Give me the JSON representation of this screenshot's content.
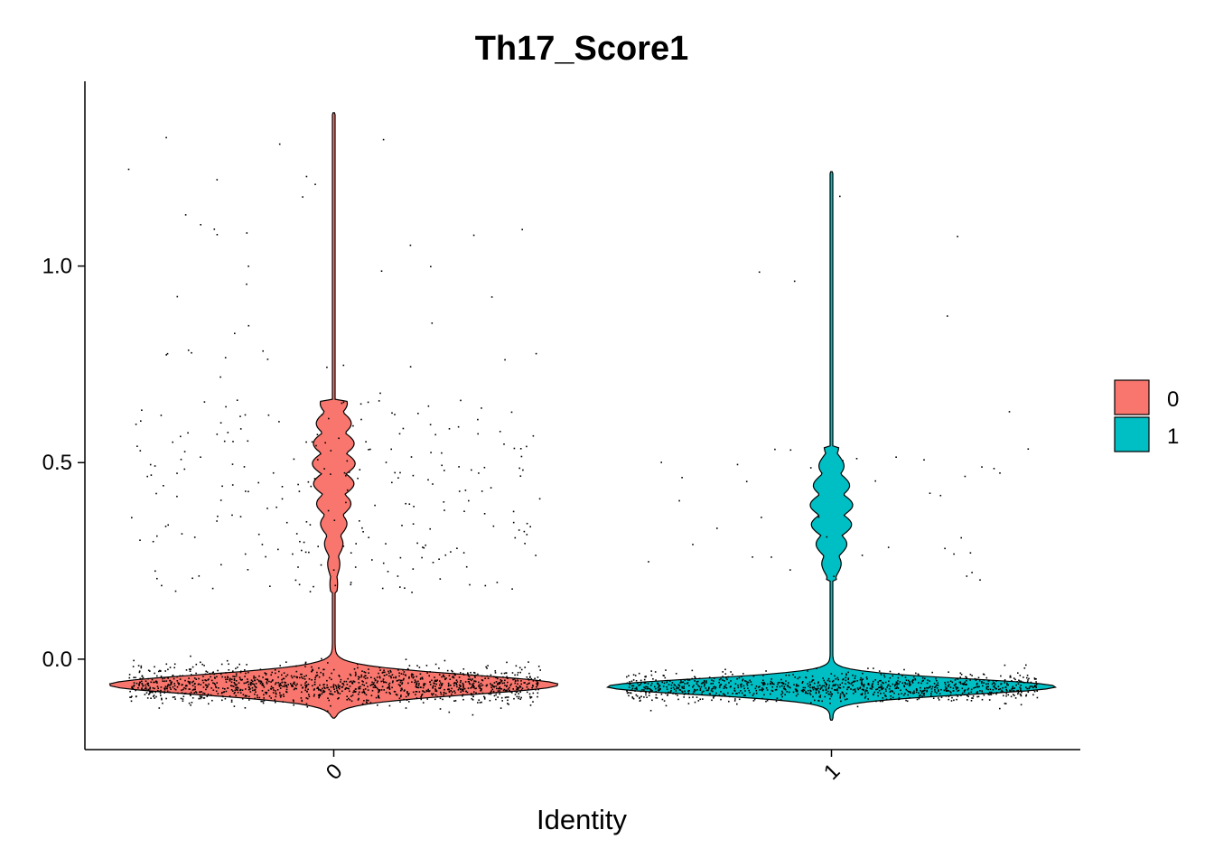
{
  "chart_data": {
    "type": "violin",
    "title": "Th17_Score1",
    "xlabel": "Identity",
    "ylabel": "",
    "ylim": [
      -0.23,
      1.47
    ],
    "y_ticks": [
      0.0,
      0.5,
      1.0
    ],
    "y_tick_labels": [
      "0.0",
      "0.5",
      "1.0"
    ],
    "categories": [
      "0",
      "1"
    ],
    "x_tick_rotation_deg": -45,
    "show_points": true,
    "grid": false,
    "legend": {
      "position": "right",
      "entries": [
        "0",
        "1"
      ]
    },
    "series": [
      {
        "category": "0",
        "color": "#F8766D",
        "max": 1.39,
        "min": -0.15,
        "bulk_center": -0.065,
        "bulk_spread": 0.025,
        "secondary_mode_range": [
          0.17,
          0.66
        ],
        "secondary_mode_center": 0.5,
        "n_points": 1350,
        "n_outliers": 280
      },
      {
        "category": "1",
        "color": "#00BFC4",
        "max": 1.24,
        "min": -0.155,
        "bulk_center": -0.07,
        "bulk_spread": 0.02,
        "secondary_mode_range": [
          0.2,
          0.54
        ],
        "secondary_mode_center": 0.38,
        "n_points": 1100,
        "n_outliers": 45
      }
    ]
  }
}
